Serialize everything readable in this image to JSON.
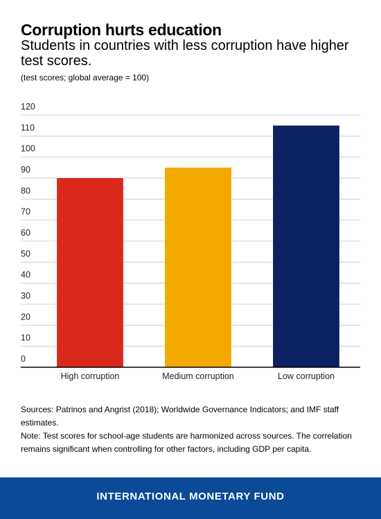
{
  "chart_data": {
    "type": "bar",
    "title": "Corruption hurts education",
    "subtitle": "Students in countries with less corruption have higher test scores.",
    "axis_note": "(test scores; global average = 100)",
    "categories": [
      "High corruption",
      "Medium corruption",
      "Low corruption"
    ],
    "values": [
      90,
      95,
      115
    ],
    "colors": [
      "#da291c",
      "#f2a900",
      "#0c2161"
    ],
    "ylim": [
      0,
      120
    ],
    "yticks": [
      0,
      10,
      20,
      30,
      40,
      50,
      60,
      70,
      80,
      90,
      100,
      110,
      120
    ],
    "grid": true
  },
  "sources": "Sources: Patrinos and Angrist (2018); Worldwide Governance Indicators; and IMF staff estimates.",
  "note": "Note: Test scores for school-age students are harmonized across sources. The correlation remains significant when controlling for other factors, including GDP per capita.",
  "footer": "INTERNATIONAL MONETARY FUND"
}
